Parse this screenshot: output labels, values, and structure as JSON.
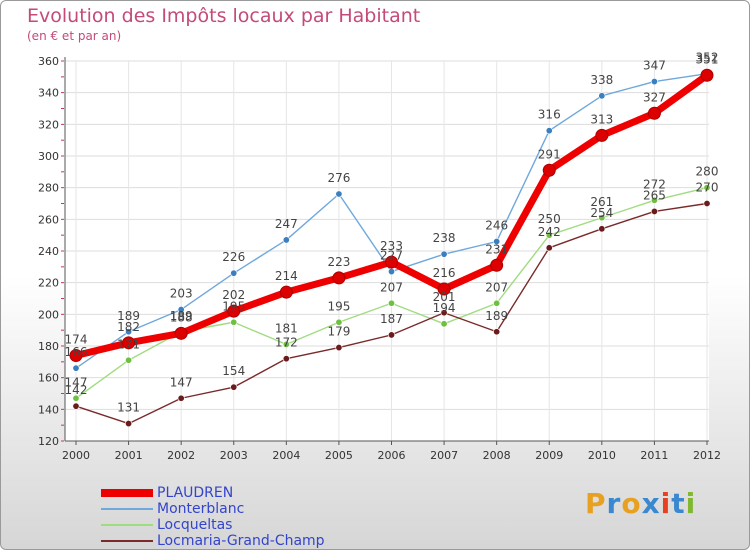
{
  "title": "Evolution des Impôts locaux par Habitant",
  "subtitle": "(en € et par an)",
  "brand": {
    "letters": [
      "P",
      "r",
      "o",
      "x",
      "i",
      "t",
      "i"
    ],
    "colors": [
      "#e8a020",
      "#3a88d0",
      "#e8a020",
      "#3a88d0",
      "#e84020",
      "#3a88d0",
      "#80b830"
    ]
  },
  "chart_data": {
    "type": "line",
    "title": "Evolution des Impôts locaux par Habitant",
    "ylabel": "(en € et par an)",
    "x": [
      "2000",
      "2001",
      "2002",
      "2003",
      "2004",
      "2005",
      "2006",
      "2007",
      "2008",
      "2009",
      "2010",
      "2011",
      "2012"
    ],
    "ylim": [
      120,
      360
    ],
    "yticks": [
      120,
      140,
      160,
      180,
      200,
      220,
      240,
      260,
      280,
      300,
      320,
      340,
      360
    ],
    "grid": true,
    "legend": "bottom-left",
    "series": [
      {
        "name": "Monterblanc",
        "color": "#6fa8dc",
        "marker": "#3a7fc0",
        "values": [
          166,
          189,
          203,
          226,
          247,
          276,
          227,
          238,
          246,
          316,
          338,
          347,
          352
        ]
      },
      {
        "name": "Locqueltas",
        "color": "#a0dc80",
        "marker": "#6fc040",
        "values": [
          147,
          171,
          189,
          195,
          181,
          195,
          207,
          194,
          207,
          250,
          261,
          272,
          280
        ]
      },
      {
        "name": "Locmaria-Grand-Champ",
        "color": "#7a2a2a",
        "marker": "#6a1c1c",
        "values": [
          142,
          131,
          147,
          154,
          172,
          179,
          187,
          201,
          189,
          242,
          254,
          265,
          270
        ]
      },
      {
        "name": "PLAUDREN",
        "color": "#ee0000",
        "marker": "#dd0000",
        "values": [
          174,
          182,
          188,
          202,
          214,
          223,
          233,
          216,
          231,
          291,
          313,
          327,
          351
        ]
      }
    ],
    "legend_order": [
      "PLAUDREN",
      "Monterblanc",
      "Locqueltas",
      "Locmaria-Grand-Champ"
    ],
    "labels": {
      "PLAUDREN": [
        "174",
        "182",
        "188",
        "202",
        "214",
        "223",
        "233",
        "216",
        "231",
        "291",
        "313",
        "327",
        "351"
      ],
      "Monterblanc": [
        "166",
        "189",
        "203",
        "226",
        "247",
        "276",
        "227",
        "238",
        "246",
        "316",
        "338",
        "347",
        "352"
      ],
      "Locqueltas": [
        "147",
        "171",
        "189",
        "195",
        "181",
        "195",
        "207",
        "194",
        "207",
        "250",
        "261",
        "272",
        "280"
      ],
      "Locmaria-Grand-Champ": [
        "142",
        "131",
        "147",
        "154",
        "172",
        "179",
        "187",
        "201",
        "189",
        "242",
        "254",
        "265",
        "270"
      ]
    }
  }
}
